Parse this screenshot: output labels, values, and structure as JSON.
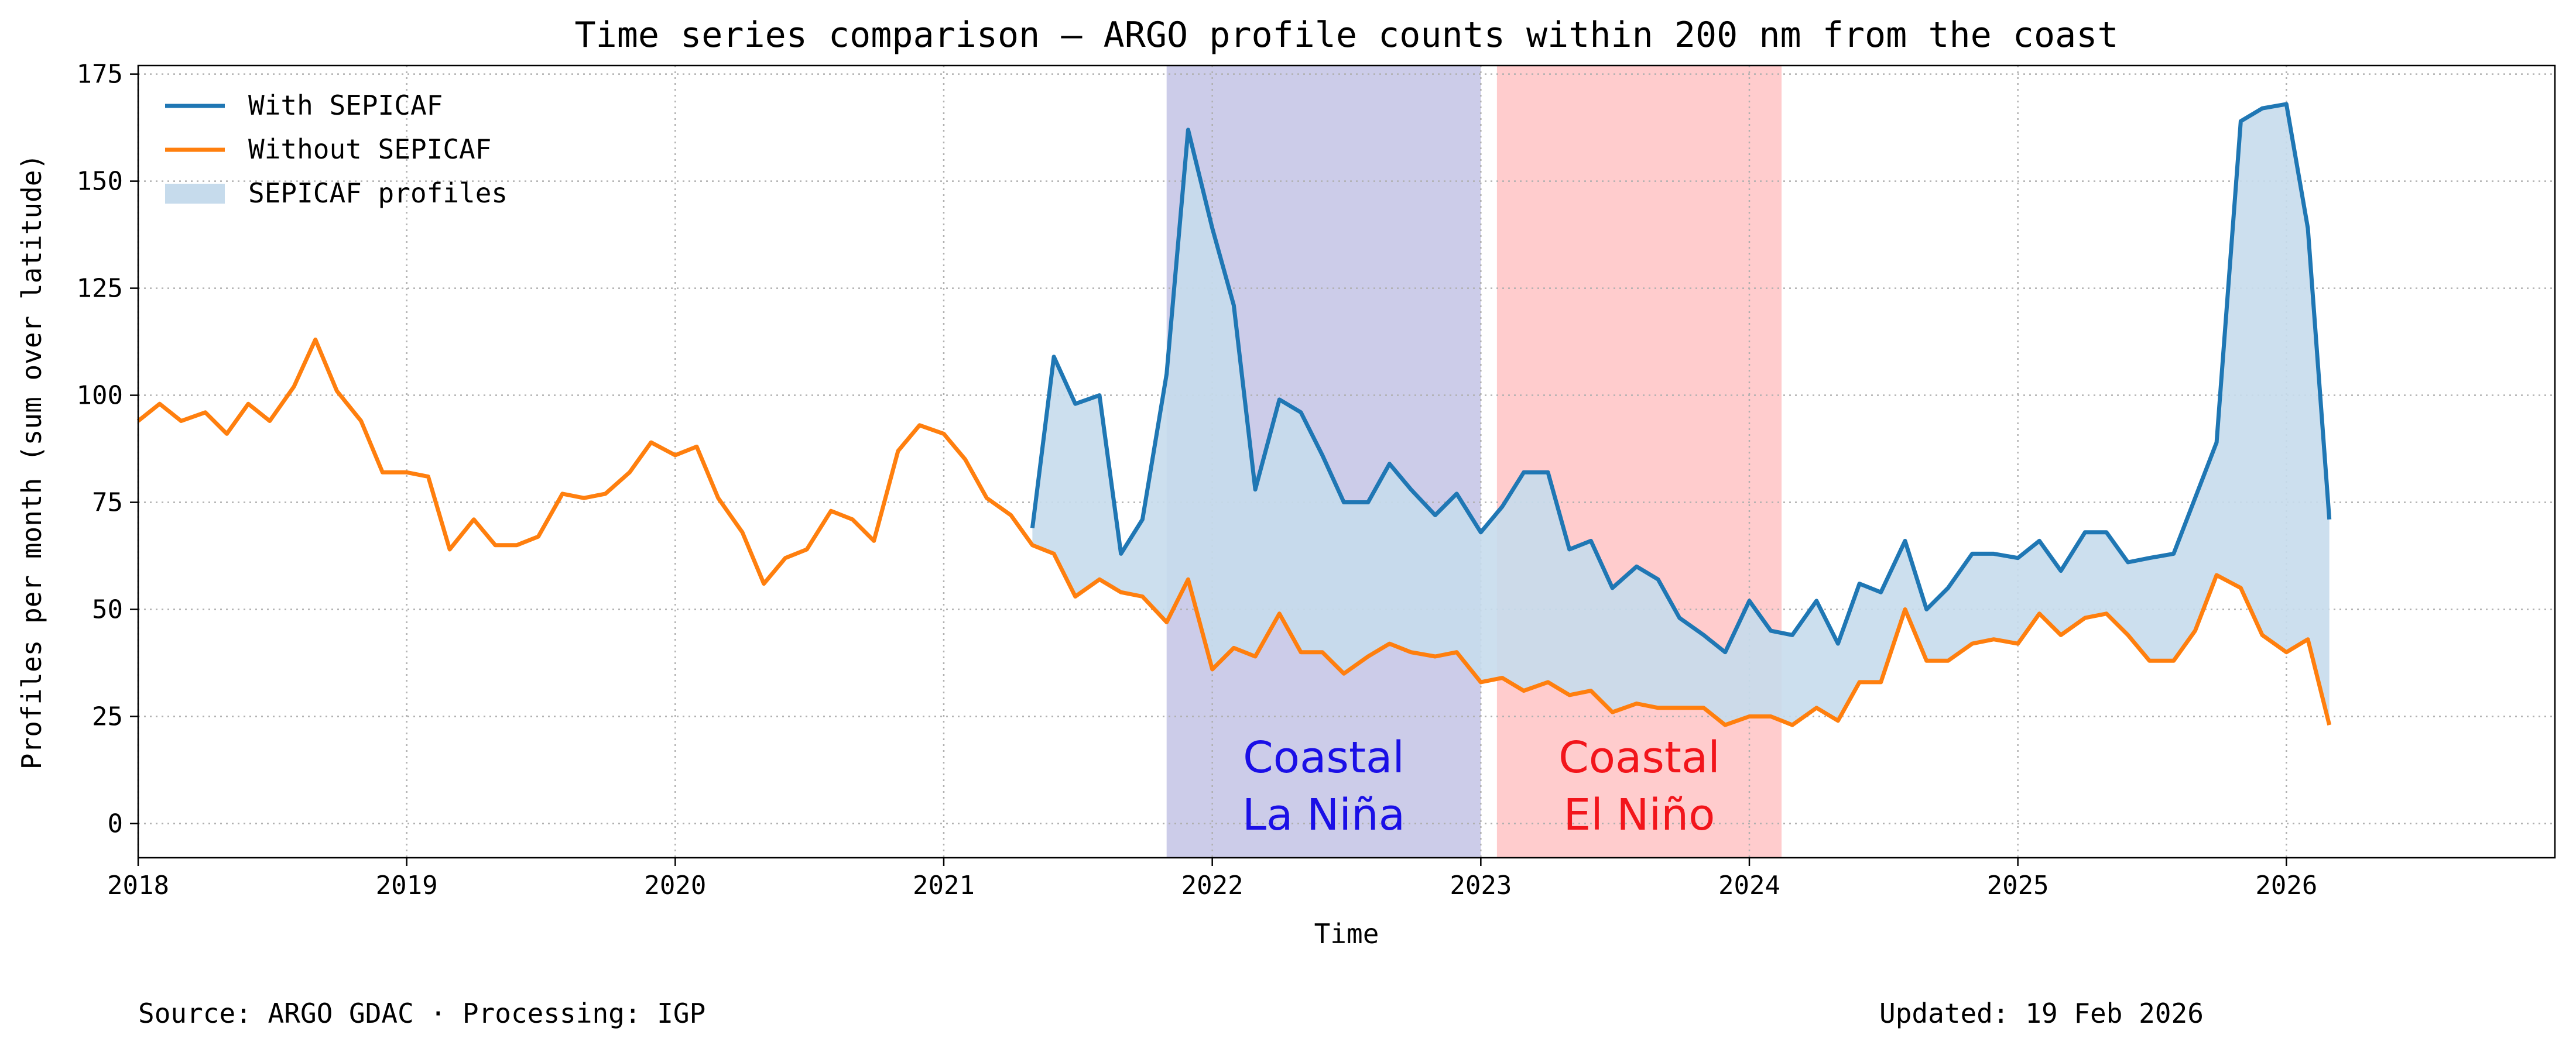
{
  "chart_data": {
    "type": "line",
    "title": "Time series comparison — ARGO profile counts within 200 nm from the coast",
    "xlabel": "Time",
    "ylabel": "Profiles per month (sum over latitude)",
    "xlim": [
      2018.0,
      2027.0
    ],
    "ylim": [
      -8,
      177
    ],
    "x_ticks": [
      "2018",
      "2019",
      "2020",
      "2021",
      "2022",
      "2023",
      "2024",
      "2025",
      "2026"
    ],
    "y_ticks": [
      "0",
      "25",
      "50",
      "75",
      "100",
      "125",
      "150",
      "175"
    ],
    "grid": true,
    "legend_position": "top-left",
    "legend": [
      "With SEPICAF",
      "Without SEPICAF",
      "SEPICAF profiles"
    ],
    "colors": {
      "with": "#1f77b4",
      "without": "#ff7f0e",
      "fill": "#c6dbec",
      "la_nina": "#cccce9",
      "el_nino": "#ffcccd",
      "la_nina_text": "#1a0fe6",
      "el_nino_text": "#f2151b"
    },
    "shaded_regions": [
      {
        "start": 2021.83,
        "end": 2023.0,
        "label_line1": "Coastal",
        "label_line2": "La Niña"
      },
      {
        "start": 2023.06,
        "end": 2024.12,
        "label_line1": "Coastal",
        "label_line2": "El Niño"
      }
    ],
    "series": [
      {
        "name": "Without SEPICAF",
        "x": [
          2018.0,
          2018.08,
          2018.16,
          2018.25,
          2018.33,
          2018.41,
          2018.49,
          2018.58,
          2018.66,
          2018.74,
          2018.83,
          2018.91,
          2019.0,
          2019.08,
          2019.16,
          2019.25,
          2019.33,
          2019.41,
          2019.49,
          2019.58,
          2019.66,
          2019.74,
          2019.83,
          2019.91,
          2020.0,
          2020.08,
          2020.16,
          2020.25,
          2020.33,
          2020.41,
          2020.49,
          2020.58,
          2020.66,
          2020.74,
          2020.83,
          2020.91,
          2021.0,
          2021.08,
          2021.16,
          2021.25,
          2021.33,
          2021.41,
          2021.49,
          2021.58,
          2021.66,
          2021.74,
          2021.83,
          2021.91,
          2022.0,
          2022.08,
          2022.16,
          2022.25,
          2022.33,
          2022.41,
          2022.49,
          2022.58,
          2022.66,
          2022.74,
          2022.83,
          2022.91,
          2023.0,
          2023.08,
          2023.16,
          2023.25,
          2023.33,
          2023.41,
          2023.49,
          2023.58,
          2023.66,
          2023.74,
          2023.83,
          2023.91,
          2024.0,
          2024.08,
          2024.16,
          2024.25,
          2024.33,
          2024.41,
          2024.49,
          2024.58,
          2024.66,
          2024.74,
          2024.83,
          2024.91,
          2025.0,
          2025.08,
          2025.16,
          2025.25,
          2025.33,
          2025.41,
          2025.49,
          2025.58,
          2025.66,
          2025.74,
          2025.83,
          2025.91,
          2026.0,
          2026.08,
          2026.16
        ],
        "values": [
          94,
          98,
          94,
          96,
          91,
          98,
          94,
          102,
          113,
          101,
          94,
          82,
          82,
          81,
          64,
          71,
          65,
          65,
          67,
          77,
          76,
          77,
          82,
          89,
          86,
          88,
          76,
          68,
          56,
          62,
          64,
          73,
          71,
          66,
          87,
          93,
          91,
          85,
          76,
          72,
          65,
          63,
          53,
          57,
          54,
          53,
          47,
          57,
          36,
          41,
          39,
          49,
          40,
          40,
          35,
          39,
          42,
          40,
          39,
          40,
          33,
          34,
          31,
          33,
          30,
          31,
          26,
          28,
          27,
          27,
          27,
          23,
          25,
          25,
          23,
          27,
          24,
          33,
          33,
          50,
          38,
          38,
          42,
          43,
          42,
          49,
          44,
          48,
          49,
          44,
          38,
          38,
          45,
          58,
          55,
          44,
          40,
          43,
          23
        ]
      },
      {
        "name": "With SEPICAF",
        "x": [
          2021.33,
          2021.41,
          2021.49,
          2021.58,
          2021.66,
          2021.74,
          2021.83,
          2021.91,
          2022.0,
          2022.08,
          2022.16,
          2022.25,
          2022.33,
          2022.41,
          2022.49,
          2022.58,
          2022.66,
          2022.74,
          2022.83,
          2022.91,
          2023.0,
          2023.08,
          2023.16,
          2023.25,
          2023.33,
          2023.41,
          2023.49,
          2023.58,
          2023.66,
          2023.74,
          2023.83,
          2023.91,
          2024.0,
          2024.08,
          2024.16,
          2024.25,
          2024.33,
          2024.41,
          2024.49,
          2024.58,
          2024.66,
          2024.74,
          2024.83,
          2024.91,
          2025.0,
          2025.08,
          2025.16,
          2025.25,
          2025.33,
          2025.41,
          2025.49,
          2025.58,
          2025.66,
          2025.74,
          2025.83,
          2025.91,
          2026.0,
          2026.08,
          2026.16
        ],
        "values": [
          69,
          109,
          98,
          100,
          63,
          71,
          105,
          162,
          139,
          121,
          78,
          99,
          96,
          86,
          75,
          75,
          84,
          78,
          72,
          77,
          68,
          74,
          82,
          82,
          64,
          66,
          55,
          60,
          57,
          48,
          44,
          40,
          52,
          45,
          44,
          52,
          42,
          56,
          54,
          66,
          50,
          55,
          63,
          63,
          62,
          66,
          59,
          68,
          68,
          61,
          62,
          63,
          76,
          89,
          164,
          167,
          168,
          139,
          71
        ]
      }
    ]
  },
  "footer": {
    "source": "Source: ARGO GDAC · Processing: IGP",
    "updated": "Updated: 19 Feb 2026"
  }
}
